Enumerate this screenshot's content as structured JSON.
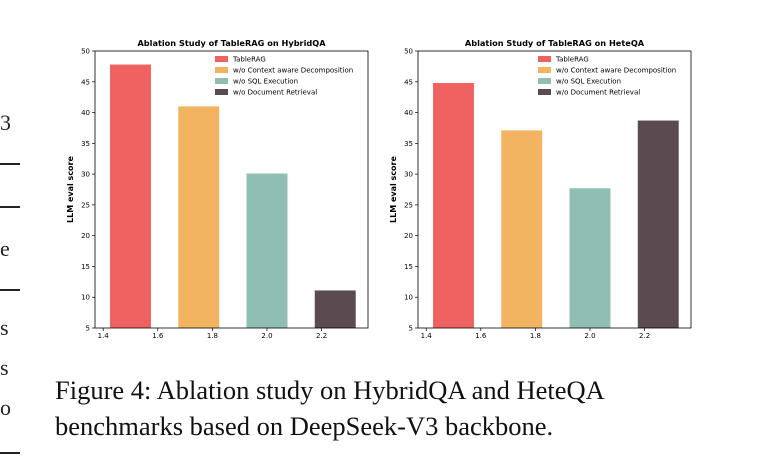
{
  "chart_data": [
    {
      "type": "bar",
      "title": "Ablation Study of TableRAG on HybridQA",
      "ylabel": "LLM eval score",
      "xlabel": "",
      "xlim": [
        1.37,
        2.37
      ],
      "ylim": [
        5,
        50
      ],
      "xticks": [
        "1.4",
        "1.6",
        "1.8",
        "2.0",
        "2.2"
      ],
      "xtick_values": [
        1.4,
        1.6,
        1.8,
        2.0,
        2.2
      ],
      "yticks": [
        "5",
        "10",
        "15",
        "20",
        "25",
        "30",
        "35",
        "40",
        "45",
        "50"
      ],
      "ytick_values": [
        5,
        10,
        15,
        20,
        25,
        30,
        35,
        40,
        45,
        50
      ],
      "bar_width": 0.15,
      "series": [
        {
          "name": "TableRAG",
          "x": 1.5,
          "value": 47.8,
          "color": "#f06262"
        },
        {
          "name": "w/o Context aware Decomposition",
          "x": 1.75,
          "value": 41.0,
          "color": "#f3b462"
        },
        {
          "name": "w/o SQL Execution",
          "x": 2.0,
          "value": 30.1,
          "color": "#8ebfb2"
        },
        {
          "name": "w/o Document Retrieval",
          "x": 2.25,
          "value": 11.1,
          "color": "#5b4a4f"
        }
      ],
      "legend": "top-right",
      "grid": false
    },
    {
      "type": "bar",
      "title": "Ablation Study of TableRAG on HeteQA",
      "ylabel": "LLM eval score",
      "xlabel": "",
      "xlim": [
        1.37,
        2.37
      ],
      "ylim": [
        5,
        50
      ],
      "xticks": [
        "1.4",
        "1.6",
        "1.8",
        "2.0",
        "2.2"
      ],
      "xtick_values": [
        1.4,
        1.6,
        1.8,
        2.0,
        2.2
      ],
      "yticks": [
        "5",
        "10",
        "15",
        "20",
        "25",
        "30",
        "35",
        "40",
        "45",
        "50"
      ],
      "ytick_values": [
        5,
        10,
        15,
        20,
        25,
        30,
        35,
        40,
        45,
        50
      ],
      "bar_width": 0.15,
      "series": [
        {
          "name": "TableRAG",
          "x": 1.5,
          "value": 44.8,
          "color": "#f06262"
        },
        {
          "name": "w/o Context aware Decomposition",
          "x": 1.75,
          "value": 37.1,
          "color": "#f3b462"
        },
        {
          "name": "w/o SQL Execution",
          "x": 2.0,
          "value": 27.7,
          "color": "#8ebfb2"
        },
        {
          "name": "w/o Document Retrieval",
          "x": 2.25,
          "value": 38.7,
          "color": "#5b4a4f"
        }
      ],
      "legend": "top-right",
      "grid": false
    }
  ],
  "caption": "Figure 4: Ablation study on HybridQA and HeteQA benchmarks based on DeepSeek-V3 backbone.",
  "margin_fragments": [
    "3",
    "e",
    "s",
    "s",
    "o"
  ]
}
